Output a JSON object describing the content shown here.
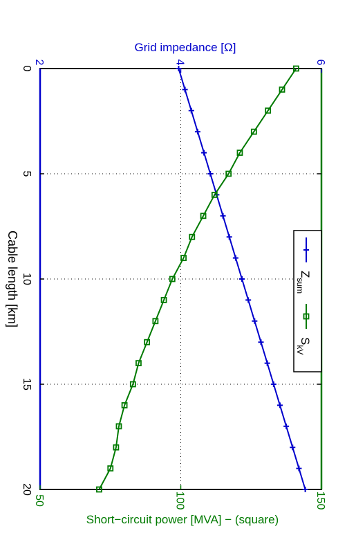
{
  "chart_data": {
    "type": "line",
    "orientation": "rotated-90",
    "x_axis": {
      "label": "Cable length [km]",
      "range": [
        0,
        20
      ],
      "ticks": [
        0,
        5,
        10,
        15,
        20
      ]
    },
    "y_axis_top": {
      "label": "Grid impedance [Ω]",
      "range": [
        2,
        6
      ],
      "ticks": [
        2,
        4,
        6
      ],
      "color": "#0000cc"
    },
    "y_axis_bottom": {
      "label": "Short−circuit power [MVA] − (square)",
      "range": [
        50,
        150
      ],
      "ticks": [
        50,
        100,
        150
      ],
      "color": "#007a00"
    },
    "grid": true,
    "legend": {
      "placement": "inside-center-right",
      "entries": [
        {
          "name": "Z",
          "subscript": "sum",
          "marker": "plus",
          "color": "#0000cc"
        },
        {
          "name": "S",
          "subscript": "kV",
          "marker": "square",
          "color": "#007a00"
        }
      ]
    },
    "x": [
      0,
      1,
      2,
      3,
      4,
      5,
      6,
      7,
      8,
      9,
      10,
      11,
      12,
      13,
      14,
      15,
      16,
      17,
      18,
      19,
      20
    ],
    "series": [
      {
        "name": "Zsum",
        "axis": "top",
        "color": "#0000cc",
        "marker": "plus",
        "values": [
          3.97,
          4.06,
          4.15,
          4.24,
          4.33,
          4.42,
          4.51,
          4.6,
          4.69,
          4.78,
          4.87,
          4.96,
          5.05,
          5.14,
          5.23,
          5.32,
          5.41,
          5.5,
          5.59,
          5.68,
          5.77
        ]
      },
      {
        "name": "SkV",
        "axis": "bottom",
        "color": "#007a00",
        "marker": "square",
        "values": [
          141,
          136,
          131,
          126,
          121,
          117,
          112,
          108,
          104,
          101,
          97,
          94,
          91,
          88,
          85,
          83,
          80,
          78,
          77,
          75,
          71
        ]
      }
    ]
  }
}
